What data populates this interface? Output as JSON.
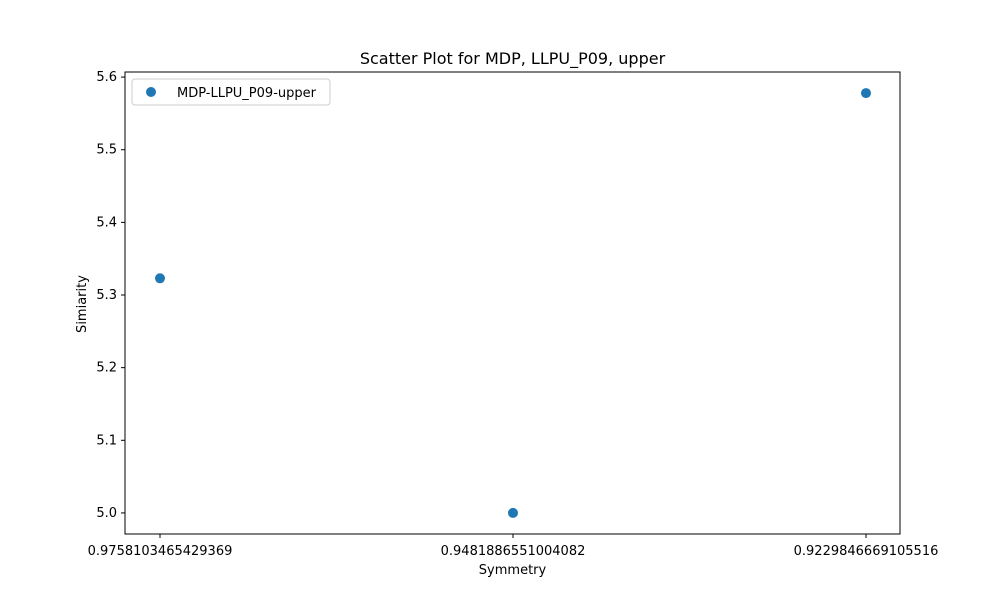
{
  "chart_data": {
    "type": "scatter",
    "title": "Scatter Plot for MDP, LLPU_P09, upper",
    "xlabel": "Symmetry",
    "ylabel": "Simiarity",
    "x_type": "categorical",
    "categories": [
      "0.9758103465429369",
      "0.9481886551004082",
      "0.9229846669105516"
    ],
    "series": [
      {
        "name": "MDP-LLPU_P09-upper",
        "color": "#1f77b4",
        "points": [
          {
            "x": "0.9758103465429369",
            "y": 5.323
          },
          {
            "x": "0.9481886551004082",
            "y": 5.0
          },
          {
            "x": "0.9229846669105516",
            "y": 5.578
          }
        ]
      }
    ],
    "ylim": [
      4.971,
      5.607
    ],
    "yticks": [
      5.0,
      5.1,
      5.2,
      5.3,
      5.4,
      5.5,
      5.6
    ],
    "ytick_labels": [
      "5.0",
      "5.1",
      "5.2",
      "5.3",
      "5.4",
      "5.5",
      "5.6"
    ],
    "grid": false,
    "legend_position": "top-left"
  }
}
